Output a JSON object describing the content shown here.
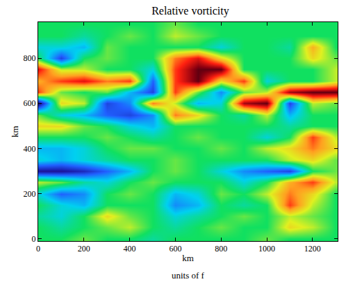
{
  "chart_data": {
    "type": "heatmap",
    "title": "Relative vorticity",
    "xlabel": "km",
    "ylabel": "km",
    "caption": "units of f",
    "x": [
      0,
      100,
      200,
      300,
      400,
      500,
      600,
      700,
      800,
      900,
      1000,
      1100,
      1200,
      1300
    ],
    "y": [
      0,
      50,
      100,
      150,
      200,
      250,
      300,
      350,
      400,
      450,
      500,
      550,
      600,
      650,
      700,
      750,
      800,
      850,
      900,
      950
    ],
    "z": [
      [
        0,
        0,
        0.1,
        0,
        0,
        -0.1,
        0,
        0,
        0,
        0,
        0.1,
        0,
        0,
        0
      ],
      [
        0,
        -0.1,
        0,
        0.1,
        0.2,
        0,
        -0.1,
        0,
        0.1,
        0,
        0,
        0.3,
        0.2,
        0
      ],
      [
        -0.1,
        -0.2,
        0,
        0.3,
        0.1,
        0,
        -0.2,
        -0.1,
        0,
        0.1,
        0,
        0.2,
        0.1,
        0
      ],
      [
        0,
        -0.2,
        -0.3,
        0,
        0,
        0,
        -0.4,
        -0.3,
        0,
        -0.1,
        0,
        0.6,
        0.2,
        0
      ],
      [
        -0.2,
        -0.5,
        -0.4,
        0,
        0.1,
        0,
        -0.3,
        -0.2,
        0.1,
        0,
        0.2,
        0.5,
        0.3,
        0
      ],
      [
        0.2,
        0.1,
        -0.1,
        -0.2,
        0,
        0.1,
        0,
        0,
        0,
        -0.2,
        0,
        0.4,
        0.6,
        0.2
      ],
      [
        -0.8,
        -0.8,
        -0.7,
        -0.5,
        -0.3,
        0,
        0.1,
        0,
        -0.2,
        -0.4,
        -0.5,
        -0.6,
        0,
        0.1
      ],
      [
        -0.2,
        -0.3,
        -0.2,
        -0.1,
        0,
        0,
        0.1,
        0,
        0,
        0,
        0,
        0.2,
        0.3,
        0.1
      ],
      [
        -0.3,
        -0.3,
        -0.2,
        0,
        0.1,
        0.1,
        0,
        0,
        0.1,
        0,
        0.2,
        0.3,
        0.5,
        0.3
      ],
      [
        0,
        0,
        0,
        0.1,
        0,
        -0.1,
        0,
        0.1,
        0,
        0,
        -0.2,
        0,
        0.6,
        0.2
      ],
      [
        0.3,
        0.3,
        0.1,
        0,
        -0.2,
        -0.3,
        0,
        0,
        0,
        0,
        0,
        -0.1,
        0,
        0
      ],
      [
        0.1,
        -0.2,
        -0.3,
        -0.5,
        -0.6,
        -0.4,
        0.5,
        0.3,
        0,
        -0.1,
        0.2,
        -0.3,
        0,
        0
      ],
      [
        -0.9,
        0.3,
        0.2,
        -0.6,
        -0.4,
        0.5,
        0.2,
        -0.3,
        -0.2,
        0.8,
        0.9,
        -0.6,
        0.2,
        0.1
      ],
      [
        0.6,
        0.1,
        0,
        0.1,
        -0.3,
        -0.6,
        0.6,
        0.1,
        -0.4,
        0.1,
        0.2,
        0.8,
        0.9,
        0.9
      ],
      [
        0.4,
        0.6,
        0.7,
        0.5,
        0.6,
        -0.5,
        0.6,
        0.9,
        0.3,
        0.6,
        -0.2,
        0,
        0,
        0.2
      ],
      [
        0.7,
        0.2,
        0.2,
        0,
        0,
        -0.2,
        0.6,
        0.9,
        0.9,
        0,
        0,
        0,
        0,
        0.2
      ],
      [
        0,
        -0.6,
        0,
        0.1,
        0,
        0,
        0.5,
        0.7,
        0.3,
        0,
        0,
        0,
        0.3,
        0.1
      ],
      [
        -0.2,
        -0.2,
        -0.3,
        0.1,
        0,
        0,
        0,
        0,
        -0.2,
        0,
        0,
        -0.1,
        0.4,
        0
      ],
      [
        0,
        0,
        -0.1,
        0,
        0.1,
        0,
        0.2,
        0.1,
        0,
        0,
        0,
        0,
        0,
        0
      ],
      [
        0,
        0,
        0,
        0,
        0,
        0,
        0.1,
        0,
        0,
        0,
        0,
        0,
        0,
        0
      ]
    ],
    "zlim": [
      -1,
      1
    ],
    "xlim": [
      0,
      1310
    ],
    "ylim": [
      -10,
      960
    ],
    "xticks": [
      0,
      200,
      400,
      600,
      800,
      1000,
      1200
    ],
    "yticks": [
      0,
      200,
      400,
      600,
      800
    ],
    "grid": false
  }
}
